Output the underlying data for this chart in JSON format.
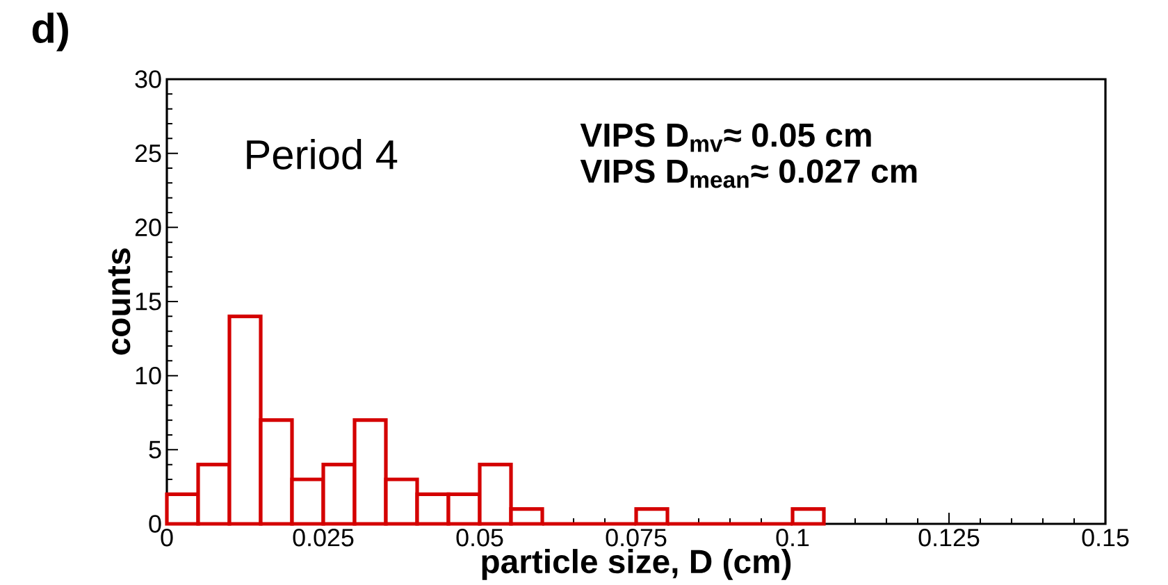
{
  "chart_data": {
    "type": "histogram",
    "xlabel": "particle size, D (cm)",
    "ylabel": "counts",
    "annotations": [
      "d)",
      "Period 4",
      "VIPS D$_{mv}$≈ 0.05 cm",
      "VIPS D$_{mean}$≈ 0.027 cm"
    ],
    "bins": [
      0,
      0.005,
      0.01,
      0.015,
      0.02,
      0.025,
      0.03,
      0.035,
      0.04,
      0.045,
      0.05,
      0.055,
      0.06,
      0.065,
      0.07,
      0.075,
      0.08,
      0.085,
      0.09,
      0.095,
      0.1,
      0.105
    ],
    "values": [
      2,
      4,
      14,
      7,
      3,
      4,
      7,
      3,
      2,
      2,
      4,
      1,
      0,
      0,
      0,
      1,
      0,
      0,
      0,
      0,
      1
    ],
    "color": "#d40000",
    "xlim": [
      0,
      0.15
    ],
    "ylim": [
      0,
      30
    ],
    "xticks": [
      0,
      0.025,
      0.05,
      0.075,
      0.1,
      0.125,
      0.15
    ],
    "yticks": [
      0,
      5,
      10,
      15,
      20,
      25,
      30
    ],
    "grid": false
  }
}
